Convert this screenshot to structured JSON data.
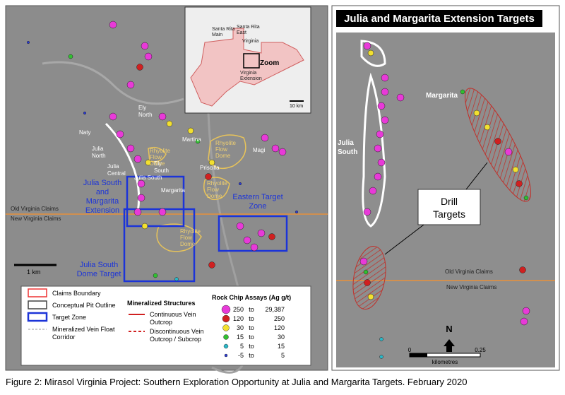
{
  "main_map": {
    "place_labels": [
      [
        "Naty"
      ],
      [
        "Julia",
        "North"
      ],
      [
        "Julia",
        "Central"
      ],
      [
        "Julia South"
      ],
      [
        "Ely",
        "North"
      ],
      [
        "Ely",
        "South"
      ],
      [
        "Martina"
      ],
      [
        "Priscilla"
      ],
      [
        "Margarita"
      ],
      [
        "Magi"
      ]
    ],
    "dome_labels": [
      [
        "Rhyolite",
        "Flow",
        "Dome"
      ],
      [
        "Rhyolite",
        "Flow",
        "Dome"
      ],
      [
        "Rhyolite",
        "Flow",
        "Dome"
      ],
      [
        "Rhyolite",
        "Flow",
        "Dome"
      ]
    ],
    "target_labels": [
      [
        "Julia South",
        "and",
        "Margarita",
        "Extension"
      ],
      [
        "Eastern Target",
        "Zone"
      ],
      [
        "Julia South",
        "Dome Target"
      ]
    ],
    "claim_labels": [
      "Old Virginia Claims",
      "New  Virginia Claims"
    ],
    "scale": "1 km"
  },
  "inset": {
    "labels": [
      [
        "Santa Rita",
        "Main"
      ],
      [
        "Santa Rita",
        "East"
      ],
      [
        "Virginia"
      ],
      [
        "Virginia",
        "Extension"
      ]
    ],
    "zoom": "Zoom",
    "scale": "10 km"
  },
  "legend": {
    "items": [
      "Claims Boundary",
      "Conceptual Pit Outline",
      "Target Zone",
      [
        "Mineralized Vein Float",
        "Corridor"
      ]
    ],
    "structures_title": "Mineralized Structures",
    "structures": [
      [
        "Continuous Vein",
        "Outcrop"
      ],
      [
        "Discontinuous Vein",
        "Outcrop / Subcrop"
      ]
    ],
    "assays_title": "Rock Chip Assays (Ag g/t)",
    "assay_rows": [
      [
        "250",
        "to",
        "29,387"
      ],
      [
        "120",
        "to",
        "250"
      ],
      [
        "30",
        "to",
        "120"
      ],
      [
        "15",
        "to",
        "30"
      ],
      [
        "5",
        "to",
        "15"
      ],
      [
        "-5",
        "to",
        "5"
      ]
    ]
  },
  "detail_map": {
    "title": "Julia and Margarita Extension Targets",
    "labels": [
      "Margarita",
      [
        "Julia",
        "South"
      ]
    ],
    "callout": [
      "Drill",
      "Targets"
    ],
    "claim_labels": [
      "Old Virginia Claims",
      "New Virginia Claims"
    ],
    "north": "N",
    "scale_ticks": [
      "0",
      "0.25"
    ],
    "scale_unit": "kilometres"
  },
  "caption": "Figure 2: Mirasol Virginia Project: Southern Exploration Opportunity at Julia and Margarita Targets.  February 2020"
}
